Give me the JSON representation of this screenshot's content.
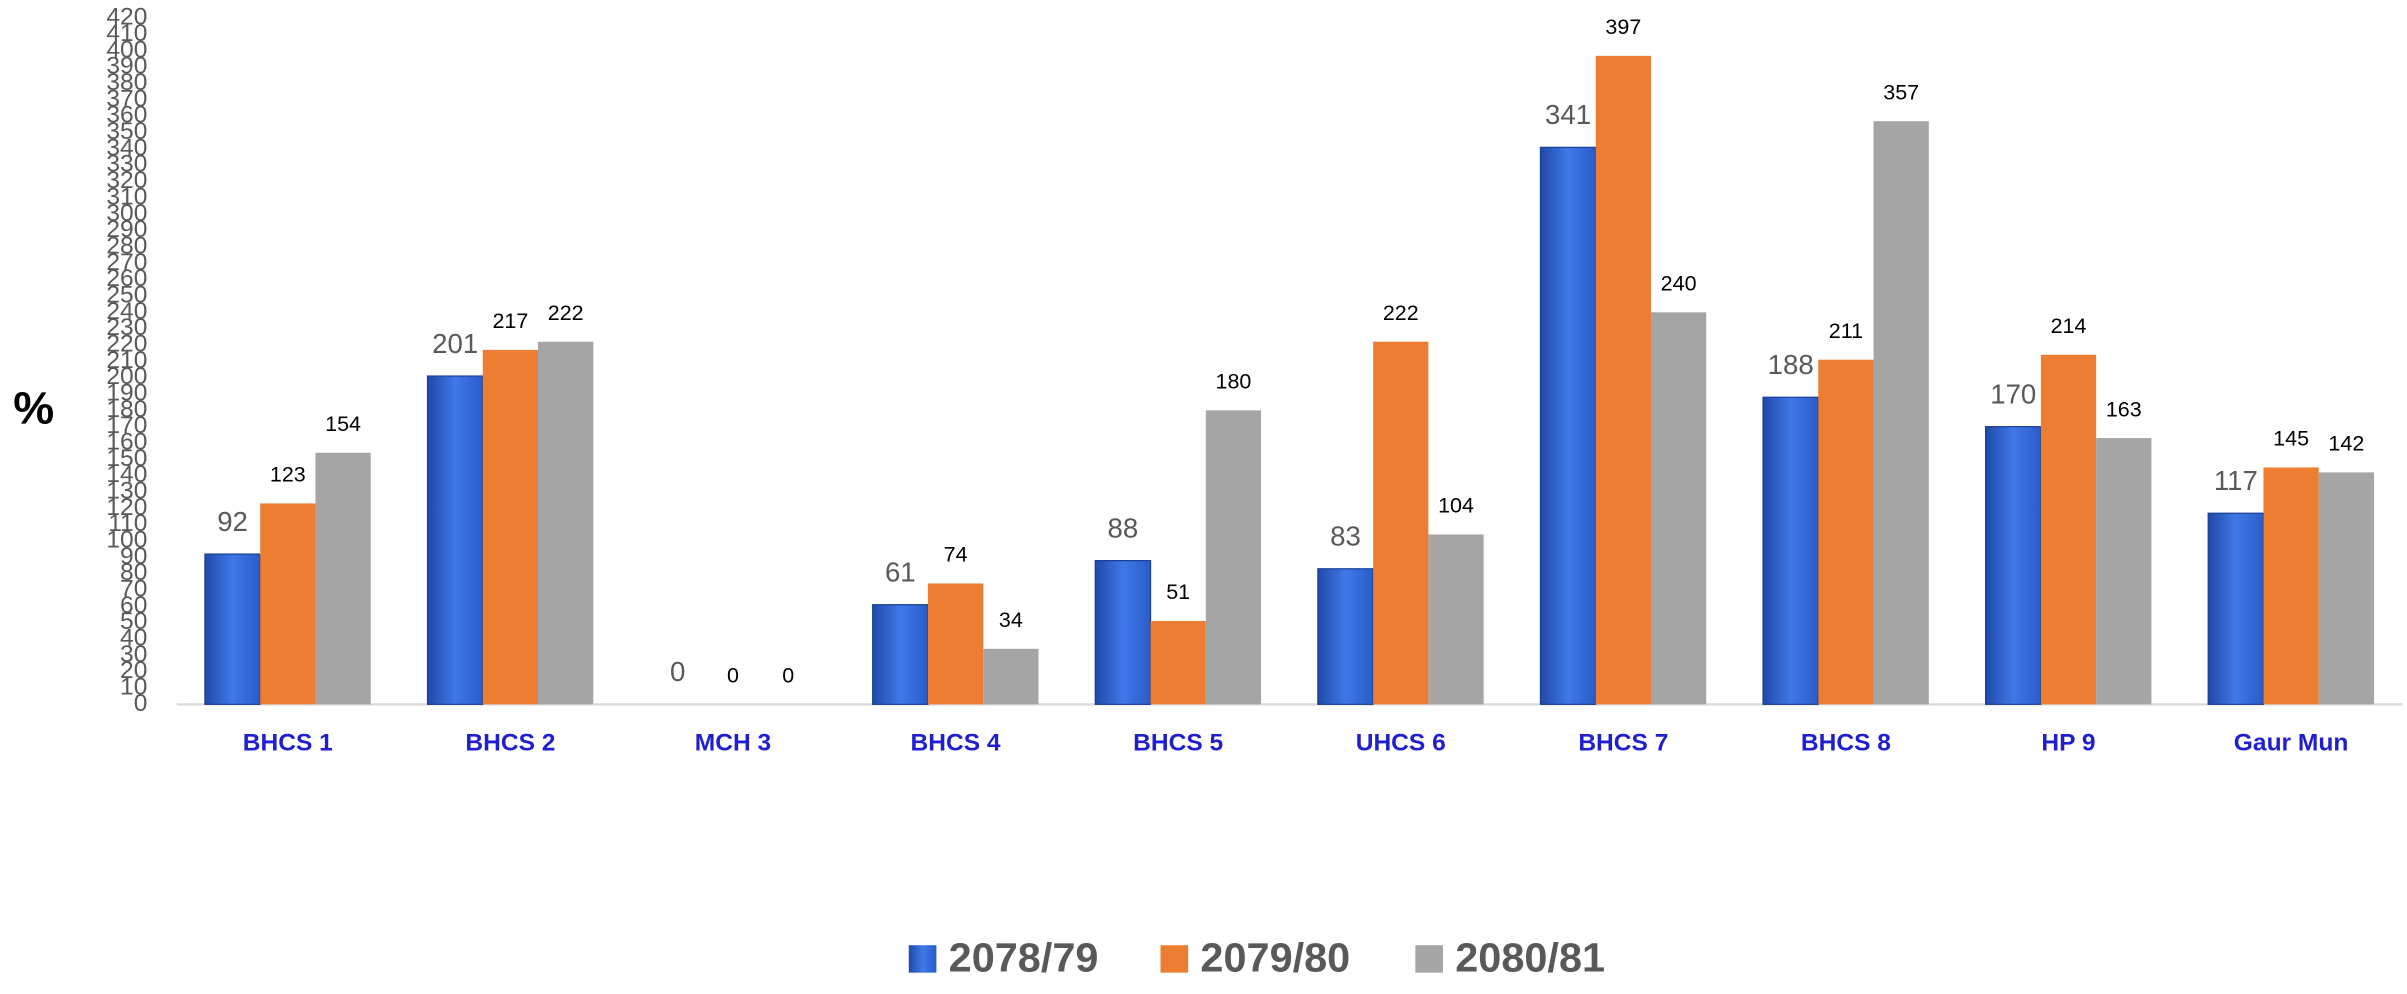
{
  "chart_data": {
    "type": "bar",
    "y_label": "%",
    "categories": [
      "BHCS 1",
      "BHCS 2",
      "MCH 3",
      "BHCS 4",
      "BHCS 5",
      "UHCS 6",
      "BHCS 7",
      "BHCS 8",
      "HP 9",
      "Gaur Mun"
    ],
    "series": [
      {
        "name": "2078/79",
        "color": "#2e62d6",
        "values": [
          92,
          201,
          0,
          61,
          88,
          83,
          341,
          188,
          170,
          117
        ]
      },
      {
        "name": "2079/80",
        "color": "#ed7d31",
        "values": [
          123,
          217,
          0,
          74,
          51,
          222,
          397,
          211,
          214,
          145
        ]
      },
      {
        "name": "2080/81",
        "color": "#a5a5a5",
        "values": [
          154,
          222,
          0,
          34,
          180,
          104,
          240,
          357,
          163,
          142
        ]
      }
    ],
    "ylim": [
      0,
      420
    ],
    "yticks": [
      0,
      10,
      20,
      30,
      40,
      50,
      60,
      70,
      80,
      90,
      100,
      110,
      120,
      130,
      140,
      150,
      160,
      170,
      180,
      190,
      200,
      210,
      220,
      230,
      240,
      250,
      260,
      270,
      280,
      290,
      300,
      310,
      320,
      330,
      340,
      350,
      360,
      370,
      380,
      390,
      400,
      410,
      420
    ],
    "grid": false,
    "legend": "bottom"
  }
}
